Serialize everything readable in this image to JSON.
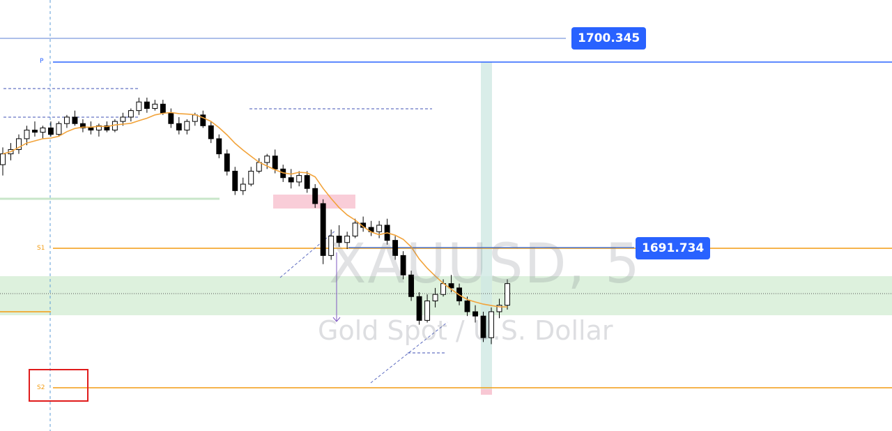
{
  "watermark": {
    "symbol": "XAUUSD, 5",
    "description": "Gold Spot / U.S. Dollar"
  },
  "pivot_labels": {
    "p": "P",
    "s1": "S1",
    "s2": "S2"
  },
  "price_badges": {
    "upper": "1700.345",
    "middle": "1691.734"
  },
  "colors": {
    "up_candle": "#ffffff",
    "down_candle": "#000000",
    "ma": "#f2a33a",
    "pivot_p": "#2962ff",
    "pivot_s": "#f39c12",
    "demand_zone": "#d9efd9",
    "supply_zone": "#f8c8d4",
    "vertical_highlight": "#cfe8e3",
    "badge": "#2962ff",
    "marker_box": "#e01b1b"
  },
  "chart_data": {
    "type": "candlestick",
    "symbol": "XAUUSD",
    "timeframe": "5",
    "price_lines": [
      {
        "name": "P",
        "value": 1700.345
      },
      {
        "name": "S1",
        "value": 1691.734
      }
    ],
    "candles": [
      [
        1695.6,
        1696.4,
        1695.1,
        1696.1
      ],
      [
        1696.1,
        1696.6,
        1695.8,
        1696.3
      ],
      [
        1696.3,
        1697.0,
        1696.1,
        1696.8
      ],
      [
        1696.8,
        1697.4,
        1696.5,
        1697.2
      ],
      [
        1697.2,
        1697.6,
        1696.9,
        1697.1
      ],
      [
        1697.1,
        1697.4,
        1696.8,
        1697.3
      ],
      [
        1697.3,
        1697.6,
        1696.9,
        1697.0
      ],
      [
        1697.0,
        1697.6,
        1696.9,
        1697.5
      ],
      [
        1697.5,
        1697.9,
        1697.3,
        1697.8
      ],
      [
        1697.8,
        1698.1,
        1697.4,
        1697.5
      ],
      [
        1697.5,
        1697.7,
        1697.1,
        1697.3
      ],
      [
        1697.3,
        1697.6,
        1697.0,
        1697.2
      ],
      [
        1697.2,
        1697.5,
        1696.9,
        1697.4
      ],
      [
        1697.4,
        1697.6,
        1697.1,
        1697.2
      ],
      [
        1697.2,
        1697.7,
        1697.1,
        1697.6
      ],
      [
        1697.6,
        1698.0,
        1697.4,
        1697.8
      ],
      [
        1697.8,
        1698.2,
        1697.6,
        1698.1
      ],
      [
        1698.1,
        1698.7,
        1697.9,
        1698.5
      ],
      [
        1698.5,
        1698.7,
        1698.0,
        1698.2
      ],
      [
        1698.2,
        1698.6,
        1698.1,
        1698.4
      ],
      [
        1698.4,
        1698.6,
        1697.9,
        1698.0
      ],
      [
        1698.0,
        1698.2,
        1697.3,
        1697.5
      ],
      [
        1697.5,
        1697.8,
        1697.0,
        1697.2
      ],
      [
        1697.2,
        1697.7,
        1697.0,
        1697.6
      ],
      [
        1697.6,
        1698.0,
        1697.4,
        1697.9
      ],
      [
        1697.9,
        1698.1,
        1697.3,
        1697.4
      ],
      [
        1697.4,
        1697.6,
        1696.6,
        1696.8
      ],
      [
        1696.8,
        1697.0,
        1695.9,
        1696.1
      ],
      [
        1696.1,
        1696.3,
        1695.1,
        1695.3
      ],
      [
        1695.3,
        1695.5,
        1694.2,
        1694.4
      ],
      [
        1694.4,
        1695.0,
        1694.2,
        1694.7
      ],
      [
        1694.7,
        1695.5,
        1694.6,
        1695.3
      ],
      [
        1695.3,
        1695.9,
        1695.2,
        1695.7
      ],
      [
        1695.7,
        1696.1,
        1695.4,
        1696.0
      ],
      [
        1696.0,
        1696.3,
        1695.2,
        1695.4
      ],
      [
        1695.4,
        1695.6,
        1694.8,
        1695.0
      ],
      [
        1695.0,
        1695.4,
        1694.5,
        1694.8
      ],
      [
        1694.8,
        1695.3,
        1694.6,
        1695.1
      ],
      [
        1695.1,
        1695.3,
        1694.3,
        1694.5
      ],
      [
        1694.5,
        1694.7,
        1693.6,
        1693.8
      ],
      [
        1693.8,
        1694.0,
        1691.0,
        1691.4
      ],
      [
        1691.4,
        1692.6,
        1691.2,
        1692.3
      ],
      [
        1692.3,
        1692.8,
        1691.8,
        1692.0
      ],
      [
        1692.0,
        1692.5,
        1691.7,
        1692.3
      ],
      [
        1692.3,
        1693.1,
        1692.2,
        1692.9
      ],
      [
        1692.9,
        1693.2,
        1692.5,
        1692.7
      ],
      [
        1692.7,
        1693.0,
        1692.3,
        1692.5
      ],
      [
        1692.5,
        1693.0,
        1692.2,
        1692.8
      ],
      [
        1692.8,
        1693.1,
        1691.9,
        1692.1
      ],
      [
        1692.1,
        1692.3,
        1691.2,
        1691.4
      ],
      [
        1691.4,
        1691.6,
        1690.3,
        1690.5
      ],
      [
        1690.5,
        1690.7,
        1689.3,
        1689.5
      ],
      [
        1689.5,
        1689.7,
        1688.2,
        1688.4
      ],
      [
        1688.4,
        1689.6,
        1688.3,
        1689.3
      ],
      [
        1689.3,
        1689.9,
        1689.0,
        1689.6
      ],
      [
        1689.6,
        1690.3,
        1689.5,
        1690.1
      ],
      [
        1690.1,
        1690.5,
        1689.7,
        1689.9
      ],
      [
        1689.9,
        1690.1,
        1689.1,
        1689.3
      ],
      [
        1689.3,
        1689.5,
        1688.6,
        1688.8
      ],
      [
        1688.8,
        1689.1,
        1688.3,
        1688.6
      ],
      [
        1688.6,
        1688.8,
        1687.4,
        1687.6
      ],
      [
        1687.6,
        1689.0,
        1687.3,
        1688.8
      ],
      [
        1688.8,
        1689.4,
        1688.5,
        1689.1
      ],
      [
        1689.1,
        1690.3,
        1688.9,
        1690.1
      ]
    ]
  }
}
